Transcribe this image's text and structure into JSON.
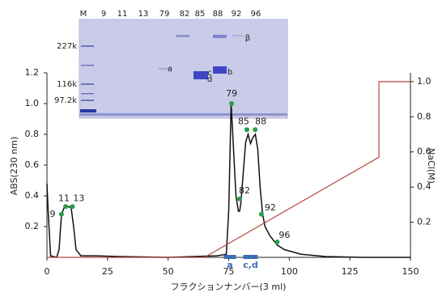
{
  "chart_data": {
    "type": "line",
    "x_label": "フラクションナンバー(3 ml)",
    "y_label": "ABS(230 nm)",
    "y2_label": "NaCl(M)",
    "xlim": [
      0,
      150
    ],
    "xticks": [
      0,
      25,
      50,
      75,
      100,
      125,
      150
    ],
    "ylim": [
      0,
      1.2
    ],
    "yticks": [
      0.2,
      0.4,
      0.6,
      0.8,
      {
        "value": 1,
        "label": "1.0"
      },
      1.2
    ],
    "y2lim": [
      0,
      1.05
    ],
    "y2ticks": [
      0.2,
      0.4,
      0.6,
      0.8,
      {
        "value": 1,
        "label": "1.0"
      }
    ],
    "series": [
      {
        "color": "#111111",
        "x": [
          0,
          0.5,
          1.5,
          4,
          5,
          6,
          7,
          8,
          9,
          10,
          11,
          12,
          14,
          20,
          30,
          50,
          70,
          74,
          75,
          76,
          77,
          78,
          79,
          79.5,
          80,
          81,
          82,
          83,
          84,
          85,
          86,
          87,
          88,
          89,
          90,
          92,
          95,
          98,
          105,
          115,
          130,
          150
        ],
        "values": [
          0.48,
          0.3,
          0.01,
          0,
          0.05,
          0.28,
          0.32,
          0.33,
          0.33,
          0.32,
          0.2,
          0.05,
          0.01,
          0.01,
          0.005,
          0,
          0.01,
          0.02,
          0.3,
          1.0,
          0.7,
          0.4,
          0.3,
          0.3,
          0.35,
          0.55,
          0.75,
          0.8,
          0.74,
          0.78,
          0.8,
          0.7,
          0.45,
          0.28,
          0.2,
          0.14,
          0.08,
          0.05,
          0.02,
          0.005,
          0,
          0
        ]
      },
      {
        "color": "#b5473c",
        "axis": "y2",
        "x": [
          0,
          65,
          137,
          137,
          150
        ],
        "values": [
          0,
          0,
          0.57,
          1,
          1
        ]
      }
    ],
    "points": {
      "color": "#2a9d4a",
      "x": [
        6,
        7.7,
        10.5,
        76.2,
        79.5,
        82.5,
        85.9,
        88.5,
        95
      ],
      "values": [
        0.28,
        0.33,
        0.33,
        1.0,
        0.38,
        0.83,
        0.83,
        0.28,
        0.1
      ],
      "labels": [
        "9",
        "11",
        "13",
        "79",
        "82",
        "85",
        "88",
        "92",
        "96"
      ]
    },
    "ranges": {
      "color": "#3b6db4",
      "labels": [
        "a",
        "c,d"
      ],
      "start": [
        73,
        81
      ],
      "end": [
        78,
        87
      ]
    },
    "gel": {
      "lanes": [
        "M",
        "9",
        "11",
        "13",
        "79",
        "82",
        "85",
        "88",
        "92",
        "96"
      ],
      "markers": [
        "227k",
        "116k",
        "97.2k"
      ],
      "band_labels": [
        "a",
        "b",
        "c",
        "d",
        "β"
      ]
    }
  }
}
